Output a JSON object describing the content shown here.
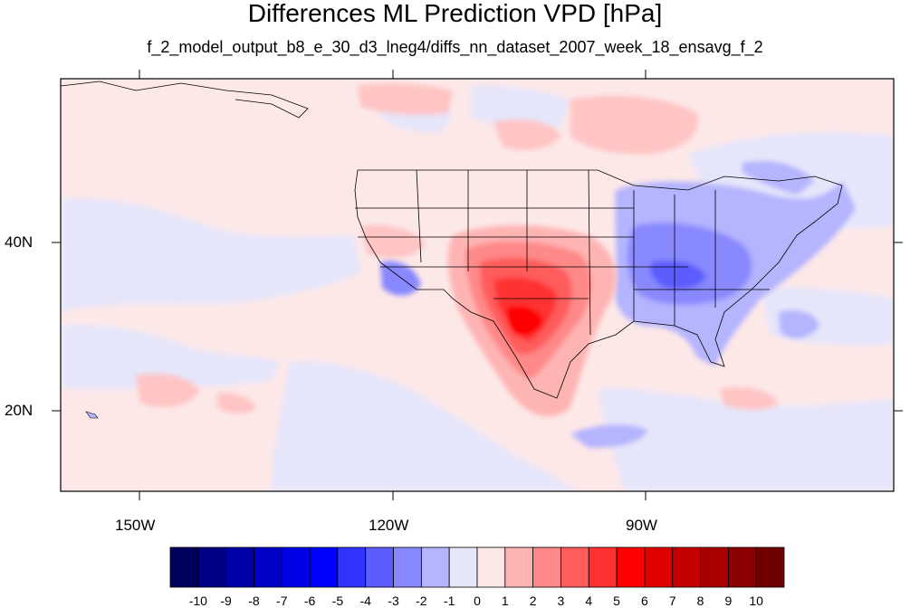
{
  "title": "Differences ML Prediction VPD [hPa]",
  "subtitle": "f_2_model_output_b8_e_30_d3_lneg4/diffs_nn_dataset_2007_week_18_ensavg_f_2",
  "axes": {
    "x_ticks": [
      "150W",
      "120W",
      "90W"
    ],
    "y_ticks": [
      "40N",
      "20N"
    ]
  },
  "colorbar": {
    "labels": [
      "-10",
      "-9",
      "-8",
      "-7",
      "-6",
      "-5",
      "-4",
      "-3",
      "-2",
      "-1",
      "0",
      "1",
      "2",
      "3",
      "4",
      "5",
      "6",
      "7",
      "8",
      "9",
      "10"
    ],
    "colors": [
      "#00005f",
      "#000087",
      "#0000a8",
      "#0000c8",
      "#0000e6",
      "#0000ff",
      "#3333ff",
      "#5c5cff",
      "#8888ff",
      "#b4b4ff",
      "#e6e6fb",
      "#fde8e8",
      "#ffb4b4",
      "#ff8888",
      "#ff5c5c",
      "#ff3030",
      "#ff0000",
      "#e00000",
      "#c40000",
      "#a80000",
      "#8c0000",
      "#700000"
    ]
  },
  "colors": {
    "ocean_base": "#fde8e8",
    "weak_neg": "#e6e6fb"
  }
}
